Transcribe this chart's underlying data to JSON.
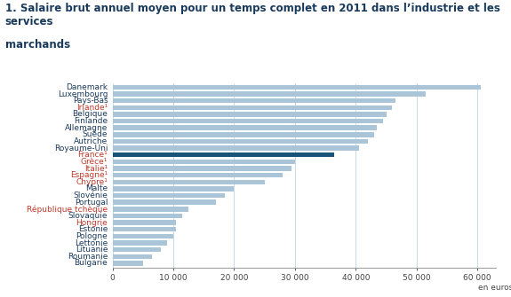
{
  "title_line1": "1. Salaire brut annuel moyen pour un temps complet en 2011 dans l’industrie et les services",
  "title_line2": "marchands",
  "countries": [
    "Danemark",
    "Luxembourg",
    "Pays-Bas",
    "Irlande¹",
    "Belgique",
    "Finlande",
    "Allemagne",
    "Suède",
    "Autriche",
    "Royaume-Uni",
    "France¹",
    "Grèce¹",
    "Italie¹",
    "Espagne¹",
    "Chypre¹",
    "Malte",
    "Slovénie",
    "Portugal",
    "République tchèque",
    "Slovaquie",
    "Hongrie",
    "Estonie",
    "Pologne",
    "Lettonie",
    "Lituanie",
    "Roumanie",
    "Bulgarie"
  ],
  "values": [
    60500,
    51500,
    46500,
    46000,
    45000,
    44500,
    43500,
    43000,
    42000,
    40500,
    36500,
    30000,
    29500,
    28000,
    25000,
    20000,
    18500,
    17000,
    12500,
    11500,
    10500,
    10500,
    10000,
    9000,
    8000,
    6500,
    5000
  ],
  "bar_color_default": "#aac4d8",
  "bar_color_highlight": "#1a537a",
  "highlight_index": 10,
  "xlabel": "en euros",
  "xlim": [
    0,
    63000
  ],
  "xticks": [
    0,
    10000,
    20000,
    30000,
    40000,
    50000,
    60000
  ],
  "xtick_labels": [
    "0",
    "10 000",
    "20 000",
    "30 000",
    "40 000",
    "50 000",
    "60 000"
  ],
  "grid_color": "#c5dce8",
  "title_color": "#1a3a5c",
  "label_color_default": "#1a3a5c",
  "label_color_france": "#c0392b",
  "label_color_italic": "#c0392b",
  "title_fontsize": 8.5,
  "tick_fontsize": 6.5,
  "label_fontsize": 6.5,
  "bar_height": 0.72,
  "label_colors": [
    "#1a3a5c",
    "#1a3a5c",
    "#1a3a5c",
    "#c0392b",
    "#1a3a5c",
    "#1a3a5c",
    "#1a3a5c",
    "#1a3a5c",
    "#1a3a5c",
    "#1a3a5c",
    "#c0392b",
    "#c0392b",
    "#c0392b",
    "#c0392b",
    "#c0392b",
    "#1a3a5c",
    "#1a3a5c",
    "#1a3a5c",
    "#c0392b",
    "#1a3a5c",
    "#c0392b",
    "#1a3a5c",
    "#1a3a5c",
    "#1a3a5c",
    "#1a3a5c",
    "#1a3a5c",
    "#1a3a5c"
  ]
}
